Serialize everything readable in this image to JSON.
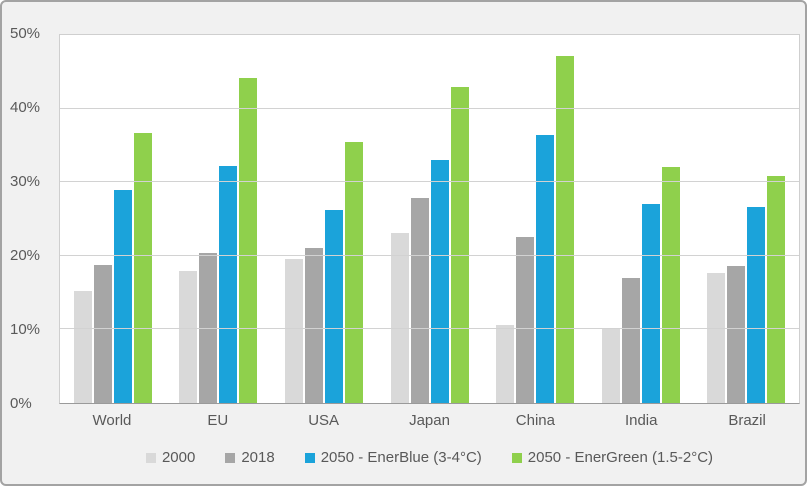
{
  "chart_data": {
    "type": "bar",
    "title": "",
    "xlabel": "",
    "ylabel": "",
    "categories": [
      "World",
      "EU",
      "USA",
      "Japan",
      "China",
      "India",
      "Brazil"
    ],
    "series": [
      {
        "name": "2000",
        "color": "#d9d9d9",
        "values": [
          15.2,
          18.0,
          19.5,
          23.1,
          10.6,
          10.0,
          17.6
        ]
      },
      {
        "name": "2018",
        "color": "#a6a6a6",
        "values": [
          18.7,
          20.4,
          21.0,
          27.8,
          22.6,
          17.0,
          18.6
        ]
      },
      {
        "name": "2050 - EnerBlue (3-4°C)",
        "color": "#1ba3da",
        "values": [
          29.0,
          32.2,
          26.2,
          33.0,
          36.4,
          27.0,
          26.7
        ]
      },
      {
        "name": "2050 - EnerGreen (1.5-2°C)",
        "color": "#8fd04c",
        "values": [
          36.7,
          44.2,
          35.4,
          42.9,
          47.1,
          32.0,
          30.8
        ]
      }
    ],
    "ylim": [
      0,
      50
    ],
    "y_tick_labels": [
      "0%",
      "10%",
      "20%",
      "30%",
      "40%",
      "50%"
    ],
    "grid": true,
    "legend_position": "bottom"
  },
  "style_colors": {
    "frame_background": "#f1f1f1",
    "frame_border": "#a3a3a3",
    "plot_background": "#ffffff",
    "gridline": "#d2d2d2",
    "axis_line": "#9a9a9a",
    "text": "#595959"
  }
}
